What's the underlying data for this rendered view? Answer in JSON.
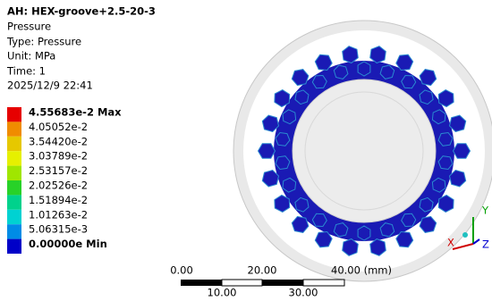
{
  "header": {
    "title": "AH: HEX-groove+2.5-20-3",
    "lines": [
      "Pressure",
      "Type: Pressure",
      "Unit: MPa",
      "Time: 1",
      "2025/12/9 22:41"
    ]
  },
  "legend": {
    "entries": [
      {
        "label": "4.55683e-2 Max",
        "color": "#e60000"
      },
      {
        "label": "4.05052e-2",
        "color": "#f08c00"
      },
      {
        "label": "3.54420e-2",
        "color": "#e6c800"
      },
      {
        "label": "3.03789e-2",
        "color": "#e6f000"
      },
      {
        "label": "2.53157e-2",
        "color": "#a0e600"
      },
      {
        "label": "2.02526e-2",
        "color": "#28d228"
      },
      {
        "label": "1.51894e-2",
        "color": "#00d28c"
      },
      {
        "label": "1.01263e-2",
        "color": "#00d2d2"
      },
      {
        "label": "5.06315e-3",
        "color": "#008ce6"
      },
      {
        "label": "0.00000e Min",
        "color": "#0000c8"
      }
    ]
  },
  "scale_bar": {
    "top_labels": [
      "0.00",
      "20.00",
      "40.00 (mm)"
    ],
    "bottom_labels": [
      "10.00",
      "30.00"
    ]
  },
  "triad": {
    "y": "Y",
    "x": "X",
    "z": "Z"
  }
}
